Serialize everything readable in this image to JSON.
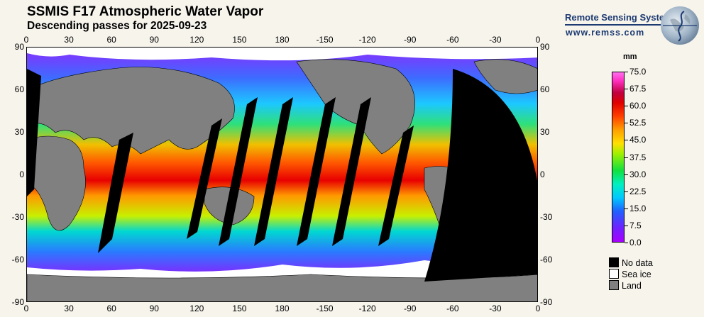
{
  "title": "SSMIS F17 Atmospheric Water Vapor",
  "subtitle": "Descending passes for 2025-09-23",
  "brand": {
    "name": "Remote Sensing Systems",
    "url": "www.remss.com"
  },
  "axes": {
    "top": [
      "0",
      "30",
      "60",
      "90",
      "120",
      "150",
      "180",
      "-150",
      "-120",
      "-90",
      "-60",
      "-30",
      "0"
    ],
    "bottom": [
      "0",
      "30",
      "60",
      "90",
      "120",
      "150",
      "180",
      "-150",
      "-120",
      "-90",
      "-60",
      "-30",
      "0"
    ],
    "left": [
      "90",
      "60",
      "30",
      "0",
      "-30",
      "-60",
      "-90"
    ],
    "right": [
      "90",
      "60",
      "30",
      "0",
      "-30",
      "-60",
      "-90"
    ]
  },
  "colorbar": {
    "unit": "mm",
    "labels": [
      "75.0",
      "67.5",
      "60.0",
      "52.5",
      "45.0",
      "37.5",
      "30.0",
      "22.5",
      "15.0",
      "7.5",
      "0.0"
    ]
  },
  "legend": [
    {
      "label": "No data",
      "color": "#000000"
    },
    {
      "label": "Sea ice",
      "color": "#ffffff"
    },
    {
      "label": "Land",
      "color": "#808080"
    }
  ],
  "colors": {
    "land": "#808080",
    "nodata": "#000000",
    "seaice": "#ffffff",
    "brand": "#1d3b72"
  }
}
